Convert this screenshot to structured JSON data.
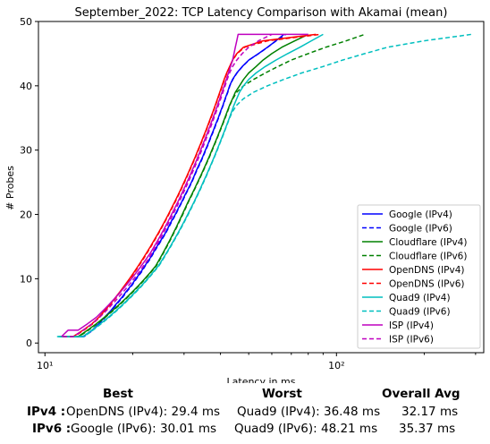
{
  "chart_data": {
    "type": "line",
    "title": "September_2022: TCP Latency Comparison with Akamai (mean)",
    "xlabel": "Latency in ms",
    "ylabel": "# Probes",
    "xscale": "log",
    "xlim": [
      9.5,
      320
    ],
    "ylim": [
      -1.5,
      50
    ],
    "xticks": [
      10,
      100
    ],
    "xtick_labels": [
      "10¹",
      "10²"
    ],
    "yticks": [
      0,
      10,
      20,
      30,
      40,
      50
    ],
    "grid": false,
    "legend": "lower-right",
    "series": [
      {
        "name": "Google (IPv4)",
        "color": "#0000ff",
        "dash": "solid",
        "x": [
          12.5,
          13.5,
          14.5,
          15.3,
          16.0,
          16.8,
          17.5,
          18.3,
          19.0,
          19.8,
          20.5,
          21.3,
          22.0,
          22.8,
          23.5,
          24.2,
          25.0,
          25.8,
          26.5,
          27.2,
          28.0,
          28.7,
          29.5,
          30.2,
          31.0,
          31.8,
          32.5,
          33.2,
          34.0,
          34.8,
          35.5,
          36.3,
          37.0,
          37.8,
          38.5,
          39.3,
          40.0,
          40.8,
          41.5,
          42.3,
          43.0,
          44.0,
          45.5,
          47.5,
          50.0,
          54.0,
          58.0,
          62.0,
          66.0
        ],
        "y": [
          1,
          1,
          2,
          3,
          4,
          5,
          6,
          7,
          8,
          9,
          10,
          11,
          12,
          13,
          14,
          15,
          16,
          17,
          18,
          19,
          20,
          21,
          22,
          23,
          24,
          25,
          26,
          27,
          28,
          29,
          30,
          31,
          32,
          33,
          34,
          35,
          36,
          37,
          38,
          39,
          40,
          41,
          42,
          43,
          44,
          45,
          46,
          47,
          48
        ]
      },
      {
        "name": "Google (IPv6)",
        "color": "#0000ff",
        "dash": "dashed",
        "x": [
          12.6,
          13.6,
          14.6,
          15.4,
          16.1,
          16.9,
          17.6,
          18.4,
          19.1,
          19.9,
          20.6,
          21.4,
          22.1,
          22.9,
          23.6,
          24.3,
          25.1,
          25.9,
          26.6,
          27.3,
          28.1,
          28.8,
          29.6,
          30.3,
          31.1,
          31.9,
          32.6,
          33.3,
          34.1,
          34.9,
          35.6,
          36.4,
          37.1,
          37.9,
          38.6,
          39.4,
          40.1,
          40.9,
          41.6,
          42.4,
          43.1,
          44.1,
          45.6,
          47.6,
          50.1,
          54.1,
          58.1,
          62.1,
          67.0
        ],
        "y": [
          1,
          1,
          2,
          3,
          4,
          5,
          6,
          7,
          8,
          9,
          10,
          11,
          12,
          13,
          14,
          15,
          16,
          17,
          18,
          19,
          20,
          21,
          22,
          23,
          24,
          25,
          26,
          27,
          28,
          29,
          30,
          31,
          32,
          33,
          34,
          35,
          36,
          37,
          38,
          39,
          40,
          41,
          42,
          43,
          44,
          45,
          46,
          47,
          48
        ]
      },
      {
        "name": "Cloudflare (IPv4)",
        "color": "#008000",
        "dash": "solid",
        "x": [
          11.2,
          13.0,
          14.0,
          15.0,
          16.0,
          17.0,
          18.0,
          19.0,
          20.0,
          21.0,
          22.0,
          23.0,
          24.0,
          24.7,
          25.4,
          26.1,
          26.8,
          27.5,
          28.2,
          28.9,
          29.6,
          30.3,
          31.0,
          31.8,
          32.6,
          33.4,
          34.2,
          35.0,
          35.8,
          36.6,
          37.4,
          38.2,
          39.0,
          39.8,
          40.6,
          41.4,
          42.2,
          43.0,
          44.0,
          45.0,
          46.5,
          48.0,
          50.0,
          53.0,
          56.0,
          60.0,
          65.0,
          72.0,
          80.0
        ],
        "y": [
          1,
          1,
          2,
          3,
          4,
          5,
          6,
          7,
          8,
          9,
          10,
          11,
          12,
          13,
          14,
          15,
          16,
          17,
          18,
          19,
          20,
          21,
          22,
          23,
          24,
          25,
          26,
          27,
          28,
          29,
          30,
          31,
          32,
          33,
          34,
          35,
          36,
          37,
          38,
          39,
          40,
          41,
          42,
          43,
          44,
          45,
          46,
          47,
          48
        ]
      },
      {
        "name": "Cloudflare (IPv6)",
        "color": "#008000",
        "dash": "dashed",
        "x": [
          11.3,
          13.1,
          14.1,
          15.1,
          16.1,
          17.1,
          18.1,
          19.1,
          20.1,
          21.1,
          22.1,
          23.1,
          24.1,
          24.8,
          25.5,
          26.2,
          26.9,
          27.6,
          28.3,
          29.0,
          29.7,
          30.4,
          31.1,
          31.9,
          32.7,
          33.5,
          34.3,
          35.1,
          35.9,
          36.7,
          37.5,
          38.3,
          39.1,
          39.9,
          40.7,
          41.5,
          42.3,
          43.1,
          44.1,
          45.5,
          48.0,
          52.0,
          57.0,
          63.0,
          70.0,
          80.0,
          92.0,
          108.0,
          125.0
        ],
        "y": [
          1,
          1,
          2,
          3,
          4,
          5,
          6,
          7,
          8,
          9,
          10,
          11,
          12,
          13,
          14,
          15,
          16,
          17,
          18,
          19,
          20,
          21,
          22,
          23,
          24,
          25,
          26,
          27,
          28,
          29,
          30,
          31,
          32,
          33,
          34,
          35,
          36,
          37,
          38,
          39,
          40,
          41,
          42,
          43,
          44,
          45,
          46,
          47,
          48
        ]
      },
      {
        "name": "OpenDNS (IPv4)",
        "color": "#ff0000",
        "dash": "solid",
        "x": [
          11.5,
          12.5,
          13.5,
          14.5,
          15.3,
          16.0,
          16.7,
          17.4,
          18.1,
          18.8,
          19.5,
          20.2,
          20.9,
          21.6,
          22.3,
          23.0,
          23.7,
          24.4,
          25.1,
          25.8,
          26.5,
          27.2,
          27.9,
          28.6,
          29.3,
          30.0,
          30.7,
          31.4,
          32.1,
          32.8,
          33.5,
          34.2,
          34.9,
          35.6,
          36.3,
          37.0,
          37.7,
          38.4,
          39.1,
          39.8,
          40.5,
          41.2,
          42.0,
          43.0,
          44.0,
          45.5,
          48.0,
          56.0,
          85.0
        ],
        "y": [
          1,
          1,
          2,
          3,
          4,
          5,
          6,
          7,
          8,
          9,
          10,
          11,
          12,
          13,
          14,
          15,
          16,
          17,
          18,
          19,
          20,
          21,
          22,
          23,
          24,
          25,
          26,
          27,
          28,
          29,
          30,
          31,
          32,
          33,
          34,
          35,
          36,
          37,
          38,
          39,
          40,
          41,
          42,
          43,
          44,
          45,
          46,
          47,
          48
        ]
      },
      {
        "name": "OpenDNS (IPv6)",
        "color": "#ff0000",
        "dash": "dashed",
        "x": [
          11.6,
          12.6,
          13.6,
          14.6,
          15.4,
          16.1,
          16.8,
          17.5,
          18.2,
          18.9,
          19.6,
          20.3,
          21.0,
          21.7,
          22.4,
          23.1,
          23.8,
          24.5,
          25.2,
          25.9,
          26.6,
          27.3,
          28.0,
          28.7,
          29.4,
          30.1,
          30.8,
          31.5,
          32.2,
          32.9,
          33.6,
          34.3,
          35.0,
          35.7,
          36.4,
          37.1,
          37.8,
          38.5,
          39.2,
          39.9,
          40.6,
          41.3,
          42.1,
          43.1,
          44.1,
          45.6,
          48.5,
          58.0,
          88.0
        ],
        "y": [
          1,
          1,
          2,
          3,
          4,
          5,
          6,
          7,
          8,
          9,
          10,
          11,
          12,
          13,
          14,
          15,
          16,
          17,
          18,
          19,
          20,
          21,
          22,
          23,
          24,
          25,
          26,
          27,
          28,
          29,
          30,
          31,
          32,
          33,
          34,
          35,
          36,
          37,
          38,
          39,
          40,
          41,
          42,
          43,
          44,
          45,
          46,
          47,
          48
        ]
      },
      {
        "name": "Quad9 (IPv4)",
        "color": "#00bfbf",
        "dash": "solid",
        "x": [
          11.0,
          13.5,
          14.5,
          15.5,
          16.5,
          17.5,
          18.5,
          19.5,
          20.5,
          21.5,
          22.5,
          23.5,
          24.5,
          25.3,
          26.1,
          26.9,
          27.7,
          28.5,
          29.3,
          30.1,
          30.9,
          31.7,
          32.5,
          33.3,
          34.1,
          34.9,
          35.7,
          36.5,
          37.3,
          38.1,
          38.9,
          39.7,
          40.5,
          41.3,
          42.1,
          42.9,
          43.7,
          44.5,
          45.5,
          46.5,
          48.0,
          50.0,
          53.0,
          57.0,
          62.0,
          68.0,
          75.0,
          82.0,
          90.0
        ],
        "y": [
          1,
          1,
          2,
          3,
          4,
          5,
          6,
          7,
          8,
          9,
          10,
          11,
          12,
          13,
          14,
          15,
          16,
          17,
          18,
          19,
          20,
          21,
          22,
          23,
          24,
          25,
          26,
          27,
          28,
          29,
          30,
          31,
          32,
          33,
          34,
          35,
          36,
          37,
          38,
          39,
          40,
          41,
          42,
          43,
          44,
          45,
          46,
          47,
          48
        ]
      },
      {
        "name": "Quad9 (IPv6)",
        "color": "#00bfbf",
        "dash": "dashed",
        "x": [
          11.1,
          13.6,
          14.6,
          15.6,
          16.6,
          17.6,
          18.6,
          19.6,
          20.6,
          21.6,
          22.6,
          23.6,
          24.6,
          25.4,
          26.2,
          27.0,
          27.8,
          28.6,
          29.4,
          30.2,
          31.0,
          31.8,
          32.6,
          33.4,
          34.2,
          35.0,
          35.8,
          36.6,
          37.4,
          38.2,
          39.0,
          39.8,
          40.6,
          41.4,
          42.2,
          43.0,
          44.0,
          45.5,
          48.0,
          52.0,
          58.0,
          66.0,
          76.0,
          90.0,
          105.0,
          125.0,
          150.0,
          200.0,
          290.0
        ],
        "y": [
          1,
          1,
          2,
          3,
          4,
          5,
          6,
          7,
          8,
          9,
          10,
          11,
          12,
          13,
          14,
          15,
          16,
          17,
          18,
          19,
          20,
          21,
          22,
          23,
          24,
          25,
          26,
          27,
          28,
          29,
          30,
          31,
          32,
          33,
          34,
          35,
          36,
          37,
          38,
          39,
          40,
          41,
          42,
          43,
          44,
          45,
          46,
          47,
          48
        ]
      },
      {
        "name": "ISP (IPv4)",
        "color": "#bf00bf",
        "dash": "solid",
        "x": [
          11.4,
          12.0,
          13.0,
          14.0,
          15.0,
          15.8,
          16.6,
          17.4,
          18.2,
          19.0,
          19.8,
          20.6,
          21.4,
          22.2,
          23.0,
          23.7,
          24.4,
          25.1,
          25.8,
          26.5,
          27.2,
          27.9,
          28.6,
          29.3,
          30.0,
          30.7,
          31.4,
          32.1,
          32.8,
          33.5,
          34.2,
          34.9,
          35.6,
          36.3,
          37.0,
          37.7,
          38.4,
          39.1,
          39.8,
          40.5,
          41.2,
          41.9,
          42.6,
          43.3,
          44.0,
          44.5,
          45.0,
          45.5,
          46.0,
          80.0
        ],
        "y": [
          1,
          2,
          2,
          3,
          4,
          5,
          6,
          7,
          8,
          9,
          10,
          11,
          12,
          13,
          14,
          15,
          16,
          17,
          18,
          19,
          20,
          21,
          22,
          23,
          24,
          25,
          26,
          27,
          28,
          29,
          30,
          31,
          32,
          33,
          34,
          35,
          36,
          37,
          38,
          39,
          40,
          41,
          42,
          43,
          44,
          45,
          46,
          47,
          48,
          48
        ]
      },
      {
        "name": "ISP (IPv6)",
        "color": "#bf00bf",
        "dash": "dashed",
        "x": [
          11.5,
          12.5,
          13.5,
          14.5,
          15.4,
          16.2,
          17.0,
          17.8,
          18.6,
          19.4,
          20.2,
          21.0,
          21.8,
          22.6,
          23.3,
          24.0,
          24.7,
          25.4,
          26.1,
          26.8,
          27.5,
          28.2,
          28.9,
          29.6,
          30.3,
          31.0,
          31.7,
          32.4,
          33.1,
          33.8,
          34.5,
          35.2,
          35.9,
          36.6,
          37.3,
          38.0,
          38.7,
          39.4,
          40.1,
          40.8,
          41.5,
          42.2,
          43.0,
          44.0,
          45.5,
          47.5,
          50.0,
          54.0,
          60.0
        ],
        "y": [
          1,
          1,
          2,
          3,
          4,
          5,
          6,
          7,
          8,
          9,
          10,
          11,
          12,
          13,
          14,
          15,
          16,
          17,
          18,
          19,
          20,
          21,
          22,
          23,
          24,
          25,
          26,
          27,
          28,
          29,
          30,
          31,
          32,
          33,
          34,
          35,
          36,
          37,
          38,
          39,
          40,
          41,
          42,
          43,
          44,
          45,
          46,
          47,
          48
        ]
      }
    ]
  },
  "stats": {
    "headers": {
      "best": "Best",
      "worst": "Worst",
      "avg": "Overall Avg"
    },
    "rows": [
      {
        "label": "IPv4 :",
        "best": "OpenDNS (IPv4): 29.4 ms",
        "worst": "Quad9 (IPv4): 36.48 ms",
        "avg": "32.17 ms"
      },
      {
        "label": "IPv6 :",
        "best": "Google (IPv6): 30.01 ms",
        "worst": "Quad9 (IPv6): 48.21 ms",
        "avg": "35.37 ms"
      }
    ]
  }
}
